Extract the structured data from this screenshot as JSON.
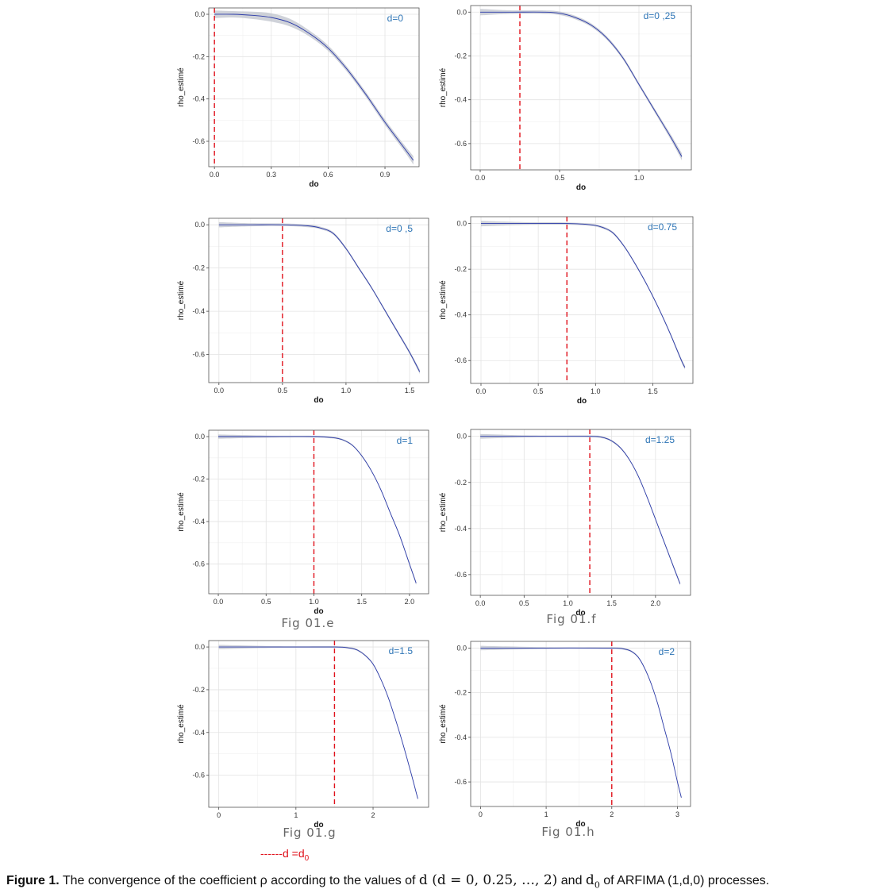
{
  "figure": {
    "caption": {
      "label": "Figure 1.",
      "text_before": " The convergence of the coefficient ρ according to the values of ",
      "math_d": "d (d = 0, 0.25, …, 2)",
      "text_and": " and ",
      "math_d0": "d0",
      "text_after": " of ARFIMA (1,d,0) processes."
    },
    "legend_note": "------d =d0",
    "sublabels": [
      "Fig 01.e",
      "Fig 01.f",
      "Fig 01.g",
      "Fig 01.h"
    ]
  },
  "chart_data": [
    {
      "type": "line",
      "panel_label": "d=0",
      "xlabel": "do",
      "ylabel": "rho_estimé",
      "d0": 0.0,
      "xlim": [
        -0.03,
        1.08
      ],
      "ylim": [
        -0.72,
        0.03
      ],
      "xticks": [
        0.0,
        0.3,
        0.6,
        0.9
      ],
      "xtick_labels": [
        "0.0",
        "0.3",
        "0.6",
        "0.9"
      ],
      "yticks": [
        0.0,
        -0.2,
        -0.4,
        -0.6
      ],
      "ytick_labels": [
        "0.0",
        "-0.2",
        "-0.4",
        "-0.6"
      ],
      "series": [
        {
          "x": [
            0.0,
            0.1,
            0.2,
            0.3,
            0.4,
            0.5,
            0.6,
            0.7,
            0.8,
            0.9,
            1.0,
            1.05
          ],
          "y": [
            0.0,
            0.0,
            -0.005,
            -0.015,
            -0.04,
            -0.09,
            -0.16,
            -0.26,
            -0.38,
            -0.51,
            -0.63,
            -0.69
          ]
        }
      ],
      "band_width": [
        0.018,
        0.015,
        0.017,
        0.02,
        0.018,
        0.014,
        0.013,
        0.012,
        0.012,
        0.013,
        0.015,
        0.02
      ]
    },
    {
      "type": "line",
      "panel_label": "d=0 ,25",
      "xlabel": "do",
      "ylabel": "rho_estimé",
      "d0": 0.25,
      "xlim": [
        -0.06,
        1.33
      ],
      "ylim": [
        -0.72,
        0.03
      ],
      "xticks": [
        0.0,
        0.5,
        1.0
      ],
      "xtick_labels": [
        "0.0",
        "0.5",
        "1.0"
      ],
      "yticks": [
        0.0,
        -0.2,
        -0.4,
        -0.6
      ],
      "ytick_labels": [
        "0.0",
        "-0.2",
        "-0.4",
        "-0.6"
      ],
      "series": [
        {
          "x": [
            0.0,
            0.2,
            0.4,
            0.5,
            0.6,
            0.7,
            0.8,
            0.9,
            1.0,
            1.1,
            1.2,
            1.27
          ],
          "y": [
            0.0,
            0.0,
            0.0,
            -0.005,
            -0.025,
            -0.06,
            -0.12,
            -0.21,
            -0.33,
            -0.45,
            -0.57,
            -0.66
          ]
        }
      ],
      "band_width": [
        0.015,
        0.008,
        0.008,
        0.008,
        0.008,
        0.008,
        0.008,
        0.008,
        0.008,
        0.009,
        0.012,
        0.016
      ]
    },
    {
      "type": "line",
      "panel_label": "d=0 ,5",
      "xlabel": "do",
      "ylabel": "rho_estimé",
      "d0": 0.5,
      "xlim": [
        -0.08,
        1.65
      ],
      "ylim": [
        -0.73,
        0.03
      ],
      "xticks": [
        0.0,
        0.5,
        1.0,
        1.5
      ],
      "xtick_labels": [
        "0.0",
        "0.5",
        "1.0",
        "1.5"
      ],
      "yticks": [
        0.0,
        -0.2,
        -0.4,
        -0.6
      ],
      "ytick_labels": [
        "0.0",
        "-0.2",
        "-0.4",
        "-0.6"
      ],
      "series": [
        {
          "x": [
            0.0,
            0.25,
            0.5,
            0.7,
            0.8,
            0.9,
            1.0,
            1.1,
            1.2,
            1.3,
            1.4,
            1.5,
            1.58
          ],
          "y": [
            0.0,
            0.0,
            0.0,
            -0.005,
            -0.015,
            -0.04,
            -0.11,
            -0.2,
            -0.29,
            -0.39,
            -0.49,
            -0.59,
            -0.68
          ]
        }
      ],
      "band_width": [
        0.012,
        0.007,
        0.006,
        0.006,
        0.006,
        0.006,
        0.006,
        0.006,
        0.006,
        0.006,
        0.007,
        0.008,
        0.01
      ]
    },
    {
      "type": "line",
      "panel_label": "d=0.75",
      "xlabel": "do",
      "ylabel": "rho_estimé",
      "d0": 0.75,
      "xlim": [
        -0.09,
        1.85
      ],
      "ylim": [
        -0.7,
        0.03
      ],
      "xticks": [
        0.0,
        0.5,
        1.0,
        1.5
      ],
      "xtick_labels": [
        "0.0",
        "0.5",
        "1.0",
        "1.5"
      ],
      "yticks": [
        0.0,
        -0.2,
        -0.4,
        -0.6
      ],
      "ytick_labels": [
        "0.0",
        "-0.2",
        "-0.4",
        "-0.6"
      ],
      "series": [
        {
          "x": [
            0.0,
            0.4,
            0.75,
            0.95,
            1.05,
            1.15,
            1.25,
            1.35,
            1.45,
            1.55,
            1.65,
            1.75,
            1.78
          ],
          "y": [
            0.0,
            0.0,
            0.0,
            -0.005,
            -0.015,
            -0.04,
            -0.1,
            -0.18,
            -0.27,
            -0.37,
            -0.48,
            -0.6,
            -0.63
          ]
        }
      ],
      "band_width": [
        0.012,
        0.006,
        0.005,
        0.005,
        0.005,
        0.005,
        0.005,
        0.005,
        0.005,
        0.005,
        0.006,
        0.008,
        0.009
      ]
    },
    {
      "type": "line",
      "panel_label": "d=1",
      "xlabel": "do",
      "ylabel": "rho_estimé",
      "d0": 1.0,
      "xlim": [
        -0.1,
        2.2
      ],
      "ylim": [
        -0.74,
        0.03
      ],
      "xticks": [
        0.0,
        0.5,
        1.0,
        1.5,
        2.0
      ],
      "xtick_labels": [
        "0.0",
        "0.5",
        "1.0",
        "1.5",
        "2.0"
      ],
      "yticks": [
        0.0,
        -0.2,
        -0.4,
        -0.6
      ],
      "ytick_labels": [
        "0.0",
        "-0.2",
        "-0.4",
        "-0.6"
      ],
      "series": [
        {
          "x": [
            0.0,
            0.5,
            1.0,
            1.2,
            1.3,
            1.4,
            1.5,
            1.6,
            1.7,
            1.8,
            1.9,
            2.0,
            2.07
          ],
          "y": [
            0.0,
            0.0,
            0.0,
            -0.005,
            -0.015,
            -0.04,
            -0.09,
            -0.16,
            -0.25,
            -0.36,
            -0.47,
            -0.6,
            -0.69
          ]
        }
      ],
      "band_width": [
        0.01,
        0.005,
        0.004,
        0.004,
        0.004,
        0.004,
        0.004,
        0.004,
        0.004,
        0.004,
        0.005,
        0.006,
        0.008
      ]
    },
    {
      "type": "line",
      "panel_label": "d=1.25",
      "xlabel": "do",
      "ylabel": "rho_estimé",
      "d0": 1.25,
      "xlim": [
        -0.11,
        2.4
      ],
      "ylim": [
        -0.69,
        0.03
      ],
      "xticks": [
        0.0,
        0.5,
        1.0,
        1.5,
        2.0
      ],
      "xtick_labels": [
        "0.0",
        "0.5",
        "1.0",
        "1.5",
        "2.0"
      ],
      "yticks": [
        0.0,
        -0.2,
        -0.4,
        -0.6
      ],
      "ytick_labels": [
        "0.0",
        "-0.2",
        "-0.4",
        "-0.6"
      ],
      "series": [
        {
          "x": [
            0.0,
            0.6,
            1.25,
            1.4,
            1.5,
            1.6,
            1.7,
            1.8,
            1.9,
            2.0,
            2.1,
            2.2,
            2.28
          ],
          "y": [
            0.0,
            0.0,
            0.0,
            -0.005,
            -0.02,
            -0.05,
            -0.1,
            -0.17,
            -0.26,
            -0.36,
            -0.46,
            -0.56,
            -0.64
          ]
        }
      ],
      "band_width": [
        0.01,
        0.004,
        0.004,
        0.004,
        0.004,
        0.004,
        0.004,
        0.004,
        0.004,
        0.004,
        0.005,
        0.006,
        0.007
      ]
    },
    {
      "type": "line",
      "panel_label": "d=1.5",
      "xlabel": "do",
      "ylabel": "rho_estimé",
      "d0": 1.5,
      "xlim": [
        -0.13,
        2.72
      ],
      "ylim": [
        -0.75,
        0.03
      ],
      "xticks": [
        0,
        1,
        2
      ],
      "xtick_labels": [
        "0",
        "1",
        "2"
      ],
      "yticks": [
        0.0,
        -0.2,
        -0.4,
        -0.6
      ],
      "ytick_labels": [
        "0.0",
        "-0.2",
        "-0.4",
        "-0.6"
      ],
      "series": [
        {
          "x": [
            0.0,
            0.75,
            1.5,
            1.7,
            1.8,
            1.9,
            2.0,
            2.1,
            2.2,
            2.3,
            2.4,
            2.5,
            2.58
          ],
          "y": [
            0.0,
            0.0,
            0.0,
            -0.005,
            -0.015,
            -0.04,
            -0.08,
            -0.15,
            -0.24,
            -0.35,
            -0.47,
            -0.6,
            -0.71
          ]
        }
      ],
      "band_width": [
        0.01,
        0.004,
        0.004,
        0.004,
        0.004,
        0.004,
        0.004,
        0.004,
        0.004,
        0.004,
        0.004,
        0.005,
        0.006
      ]
    },
    {
      "type": "line",
      "panel_label": "d=2",
      "xlabel": "do",
      "ylabel": "rho_estimé",
      "d0": 2.0,
      "xlim": [
        -0.15,
        3.2
      ],
      "ylim": [
        -0.71,
        0.03
      ],
      "xticks": [
        0,
        1,
        2,
        3
      ],
      "xtick_labels": [
        "0",
        "1",
        "2",
        "3"
      ],
      "yticks": [
        0.0,
        -0.2,
        -0.4,
        -0.6
      ],
      "ytick_labels": [
        "0.0",
        "-0.2",
        "-0.4",
        "-0.6"
      ],
      "series": [
        {
          "x": [
            0.0,
            1.0,
            2.0,
            2.2,
            2.3,
            2.4,
            2.5,
            2.6,
            2.7,
            2.8,
            2.9,
            3.0,
            3.06
          ],
          "y": [
            0.0,
            0.0,
            0.0,
            -0.005,
            -0.015,
            -0.04,
            -0.09,
            -0.16,
            -0.25,
            -0.36,
            -0.47,
            -0.6,
            -0.67
          ]
        }
      ],
      "band_width": [
        0.01,
        0.004,
        0.004,
        0.004,
        0.004,
        0.004,
        0.004,
        0.004,
        0.004,
        0.004,
        0.004,
        0.005,
        0.006
      ]
    }
  ]
}
